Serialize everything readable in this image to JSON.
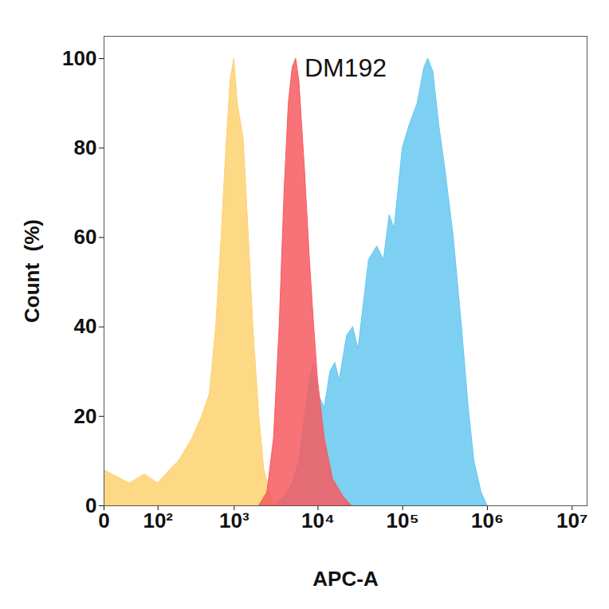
{
  "chart_data": {
    "type": "area",
    "title": "DM192",
    "x_label": "APC-A",
    "y_label": "Count  (%)",
    "log": "x",
    "xlim": [
      0,
      15000000
    ],
    "xticks": [
      {
        "value": 0,
        "label": "0"
      },
      {
        "value": 100,
        "label": "10²"
      },
      {
        "value": 1000,
        "label": "10³"
      },
      {
        "value": 10000,
        "label": "10⁴"
      },
      {
        "value": 100000,
        "label": "10⁵"
      },
      {
        "value": 1000000,
        "label": "10⁶"
      },
      {
        "value": 10000000,
        "label": "10⁷"
      }
    ],
    "ylim": [
      0,
      105
    ],
    "yticks": [
      0,
      20,
      40,
      60,
      80,
      100
    ],
    "grid": false,
    "series": [
      {
        "color": "#fdd170",
        "x": [
          0,
          30,
          60,
          100,
          150,
          200,
          300,
          400,
          500,
          600,
          700,
          800,
          900,
          1000,
          1100,
          1300,
          1500,
          1700,
          2000,
          2300,
          2700,
          3000
        ],
        "values": [
          8,
          5,
          7,
          5,
          8,
          10,
          15,
          20,
          25,
          40,
          60,
          80,
          95,
          100,
          90,
          82,
          60,
          40,
          20,
          8,
          3,
          0
        ]
      },
      {
        "color": "#66c8f0",
        "x": [
          3000,
          4000,
          5000,
          6000,
          7000,
          8000,
          9000,
          10000,
          12000,
          14000,
          16000,
          18000,
          22000,
          26000,
          30000,
          40000,
          50000,
          60000,
          70000,
          80000,
          100000,
          120000,
          150000,
          180000,
          200000,
          230000,
          270000,
          320000,
          400000,
          500000,
          600000,
          700000,
          850000,
          1000000
        ],
        "values": [
          0,
          2,
          5,
          10,
          20,
          28,
          32,
          25,
          22,
          30,
          32,
          28,
          38,
          40,
          35,
          55,
          58,
          55,
          65,
          62,
          80,
          85,
          90,
          98,
          100,
          97,
          85,
          75,
          60,
          40,
          22,
          10,
          3,
          0
        ]
      },
      {
        "color": "#f65a5f",
        "x": [
          2000,
          2500,
          3000,
          3500,
          4000,
          4500,
          5000,
          5500,
          6000,
          7000,
          8000,
          9000,
          10000,
          12000,
          15000,
          20000,
          25000
        ],
        "values": [
          0,
          3,
          15,
          40,
          70,
          90,
          98,
          100,
          95,
          75,
          55,
          40,
          28,
          15,
          6,
          2,
          0
        ]
      }
    ]
  }
}
